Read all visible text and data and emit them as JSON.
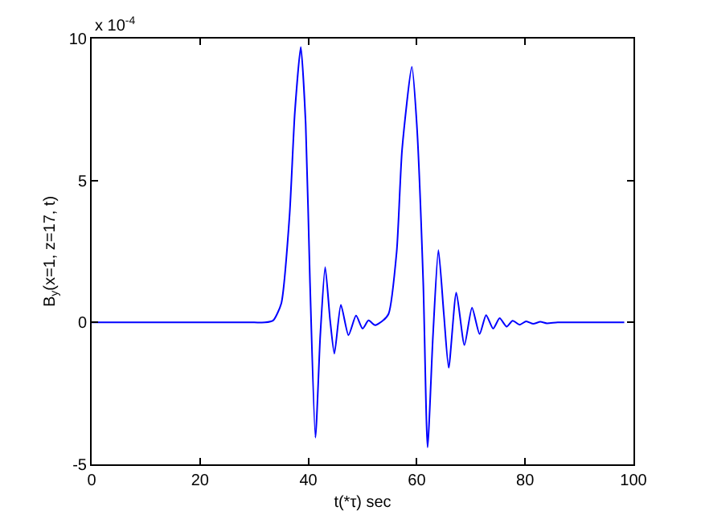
{
  "chart_data": {
    "type": "line",
    "xlabel": "t(*τ) sec",
    "ylabel": "B$_{y}$(x=1, z=17, t)",
    "annotations": [
      "x 10$^{-4}$"
    ],
    "xlim": [
      0,
      100
    ],
    "xticks": [
      0,
      20,
      40,
      60,
      80,
      100
    ],
    "ylim": [
      -5,
      10
    ],
    "yticks": [
      -5,
      0,
      5,
      10
    ],
    "legend": false,
    "marker": "none",
    "line_style": "solid",
    "series": [
      {
        "color": "#0000ff",
        "x": [
          0,
          10,
          20,
          30,
          32,
          33.5,
          35,
          36.5,
          37.5,
          38.6,
          39.5,
          40.3,
          41.3,
          42.2,
          43.1,
          44.0,
          44.8,
          46.0,
          47.4,
          48.8,
          50.0,
          51.1,
          52.3,
          53.8,
          54.8,
          56.3,
          57.3,
          59.1,
          60.0,
          61.2,
          62.0,
          63.0,
          64.0,
          65.0,
          65.9,
          67.3,
          68.8,
          70.2,
          71.6,
          72.8,
          74.1,
          75.3,
          76.6,
          77.7,
          79.0,
          80.2,
          81.5,
          82.8,
          84.0,
          86,
          90,
          95,
          98.3
        ],
        "values": [
          0,
          0,
          0,
          0,
          0,
          0.07,
          0.67,
          3.7,
          7.4,
          9.7,
          7.0,
          1.4,
          -4.06,
          -0.45,
          1.95,
          0.1,
          -1.1,
          0.62,
          -0.45,
          0.24,
          -0.22,
          0.07,
          -0.1,
          0.07,
          0.3,
          2.5,
          6.1,
          9.0,
          7.0,
          1.4,
          -4.4,
          -0.45,
          2.55,
          0.3,
          -1.6,
          1.05,
          -0.8,
          0.52,
          -0.41,
          0.26,
          -0.22,
          0.15,
          -0.15,
          0.06,
          -0.08,
          0.04,
          -0.05,
          0.02,
          -0.03,
          0,
          0,
          0,
          0
        ]
      }
    ]
  }
}
